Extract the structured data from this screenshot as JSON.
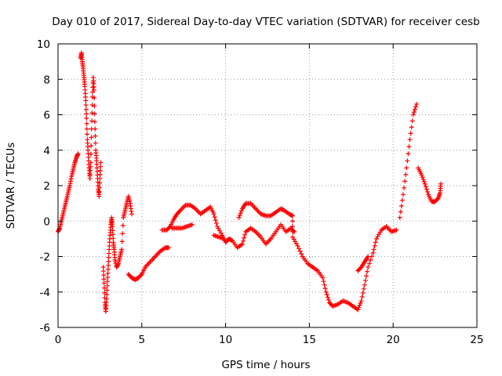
{
  "chart_data": {
    "type": "scatter",
    "title": "Day 010 of 2017, Sidereal Day-to-day VTEC variation (SDTVAR) for receiver cesb",
    "xlabel": "GPS time / hours",
    "ylabel": "SDTVAR / TECUs",
    "xlim": [
      0,
      25
    ],
    "ylim": [
      -6,
      10
    ],
    "x_ticks": [
      0,
      5,
      10,
      15,
      20,
      25
    ],
    "y_ticks": [
      -6,
      -4,
      -2,
      0,
      2,
      4,
      6,
      8,
      10
    ],
    "grid": true,
    "marker": "+",
    "color": "#ff0000",
    "series": [
      {
        "name": "SDTVAR",
        "points": [
          [
            0.0,
            -0.6
          ],
          [
            0.1,
            -0.4
          ],
          [
            0.2,
            0.0
          ],
          [
            0.3,
            0.4
          ],
          [
            0.4,
            0.8
          ],
          [
            0.5,
            1.2
          ],
          [
            0.6,
            1.6
          ],
          [
            0.7,
            2.0
          ],
          [
            0.8,
            2.5
          ],
          [
            0.9,
            2.9
          ],
          [
            1.0,
            3.3
          ],
          [
            1.1,
            3.6
          ],
          [
            1.2,
            3.8
          ],
          [
            1.35,
            9.2
          ],
          [
            1.4,
            9.5
          ],
          [
            1.45,
            9.0
          ],
          [
            1.5,
            8.6
          ],
          [
            1.55,
            8.1
          ],
          [
            1.6,
            7.6
          ],
          [
            1.65,
            6.8
          ],
          [
            1.7,
            5.8
          ],
          [
            1.75,
            4.6
          ],
          [
            1.8,
            3.8
          ],
          [
            1.85,
            3.0
          ],
          [
            1.9,
            2.4
          ],
          [
            1.95,
            3.3
          ],
          [
            2.0,
            5.2
          ],
          [
            2.05,
            7.0
          ],
          [
            2.1,
            8.1
          ],
          [
            2.15,
            7.4
          ],
          [
            2.2,
            5.6
          ],
          [
            2.25,
            4.0
          ],
          [
            2.3,
            3.4
          ],
          [
            2.35,
            2.6
          ],
          [
            2.4,
            1.8
          ],
          [
            2.45,
            1.4
          ],
          [
            2.5,
            2.4
          ],
          [
            2.55,
            3.3
          ],
          [
            2.7,
            -2.6
          ],
          [
            2.75,
            -3.5
          ],
          [
            2.8,
            -4.6
          ],
          [
            2.85,
            -5.1
          ],
          [
            2.9,
            -4.4
          ],
          [
            2.95,
            -3.4
          ],
          [
            3.0,
            -2.5
          ],
          [
            3.05,
            -1.6
          ],
          [
            3.1,
            -0.8
          ],
          [
            3.15,
            -0.2
          ],
          [
            3.2,
            0.2
          ],
          [
            3.25,
            -0.3
          ],
          [
            3.3,
            -1.2
          ],
          [
            3.35,
            -1.6
          ],
          [
            3.4,
            -2.2
          ],
          [
            3.5,
            -2.6
          ],
          [
            3.6,
            -2.4
          ],
          [
            3.7,
            -2.0
          ],
          [
            3.8,
            -1.6
          ],
          [
            3.9,
            0.2
          ],
          [
            4.0,
            0.6
          ],
          [
            4.1,
            1.0
          ],
          [
            4.2,
            1.4
          ],
          [
            4.3,
            1.0
          ],
          [
            4.4,
            0.4
          ],
          [
            4.2,
            -3.0
          ],
          [
            4.4,
            -3.2
          ],
          [
            4.6,
            -3.3
          ],
          [
            4.8,
            -3.2
          ],
          [
            5.0,
            -3.0
          ],
          [
            5.2,
            -2.6
          ],
          [
            5.5,
            -2.3
          ],
          [
            5.8,
            -2.0
          ],
          [
            6.1,
            -1.7
          ],
          [
            6.4,
            -1.5
          ],
          [
            6.6,
            -1.5
          ],
          [
            6.2,
            -0.5
          ],
          [
            6.5,
            -0.5
          ],
          [
            6.7,
            -0.3
          ],
          [
            6.9,
            0.1
          ],
          [
            7.1,
            0.4
          ],
          [
            7.3,
            0.6
          ],
          [
            7.6,
            0.9
          ],
          [
            7.9,
            0.9
          ],
          [
            8.2,
            0.7
          ],
          [
            8.5,
            0.4
          ],
          [
            8.8,
            0.6
          ],
          [
            9.1,
            0.8
          ],
          [
            9.3,
            0.4
          ],
          [
            9.5,
            -0.3
          ],
          [
            9.8,
            -0.8
          ],
          [
            10.0,
            -1.2
          ],
          [
            10.2,
            -1.0
          ],
          [
            10.4,
            -1.1
          ],
          [
            10.7,
            -1.5
          ],
          [
            11.0,
            -1.3
          ],
          [
            11.2,
            -0.6
          ],
          [
            11.5,
            -0.4
          ],
          [
            11.8,
            -0.6
          ],
          [
            12.1,
            -0.9
          ],
          [
            12.4,
            -1.3
          ],
          [
            12.7,
            -1.0
          ],
          [
            13.0,
            -0.6
          ],
          [
            13.3,
            -0.2
          ],
          [
            13.6,
            -0.6
          ],
          [
            13.9,
            -0.4
          ],
          [
            14.1,
            -0.6
          ],
          [
            6.8,
            -0.4
          ],
          [
            7.1,
            -0.4
          ],
          [
            7.4,
            -0.4
          ],
          [
            7.7,
            -0.3
          ],
          [
            8.0,
            -0.2
          ],
          [
            9.3,
            -0.8
          ],
          [
            9.6,
            -0.9
          ],
          [
            9.9,
            -1.0
          ],
          [
            10.8,
            0.2
          ],
          [
            11.0,
            0.7
          ],
          [
            11.2,
            1.0
          ],
          [
            11.5,
            1.0
          ],
          [
            11.8,
            0.7
          ],
          [
            12.1,
            0.4
          ],
          [
            12.4,
            0.3
          ],
          [
            12.7,
            0.3
          ],
          [
            13.0,
            0.5
          ],
          [
            13.3,
            0.7
          ],
          [
            13.5,
            0.6
          ],
          [
            13.8,
            0.4
          ],
          [
            14.0,
            0.3
          ],
          [
            14.0,
            -0.9
          ],
          [
            14.3,
            -1.4
          ],
          [
            14.6,
            -2.0
          ],
          [
            14.9,
            -2.4
          ],
          [
            15.2,
            -2.6
          ],
          [
            15.5,
            -2.8
          ],
          [
            15.8,
            -3.2
          ],
          [
            16.0,
            -4.0
          ],
          [
            16.2,
            -4.6
          ],
          [
            16.4,
            -4.8
          ],
          [
            16.7,
            -4.7
          ],
          [
            17.0,
            -4.5
          ],
          [
            17.3,
            -4.6
          ],
          [
            17.6,
            -4.8
          ],
          [
            17.9,
            -5.0
          ],
          [
            18.1,
            -4.5
          ],
          [
            18.3,
            -3.6
          ],
          [
            18.5,
            -2.6
          ],
          [
            18.8,
            -1.8
          ],
          [
            19.0,
            -1.0
          ],
          [
            19.3,
            -0.5
          ],
          [
            19.6,
            -0.3
          ],
          [
            19.9,
            -0.6
          ],
          [
            20.2,
            -0.5
          ],
          [
            17.9,
            -2.8
          ],
          [
            18.1,
            -2.6
          ],
          [
            18.3,
            -2.3
          ],
          [
            18.5,
            -2.0
          ],
          [
            20.4,
            0.2
          ],
          [
            20.6,
            1.5
          ],
          [
            20.8,
            3.0
          ],
          [
            21.0,
            4.6
          ],
          [
            21.2,
            6.0
          ],
          [
            21.4,
            6.6
          ],
          [
            21.5,
            3.0
          ],
          [
            21.7,
            2.6
          ],
          [
            21.9,
            2.1
          ],
          [
            22.1,
            1.5
          ],
          [
            22.3,
            1.1
          ],
          [
            22.5,
            1.1
          ],
          [
            22.7,
            1.3
          ],
          [
            22.8,
            1.6
          ],
          [
            22.85,
            2.1
          ]
        ]
      }
    ]
  }
}
